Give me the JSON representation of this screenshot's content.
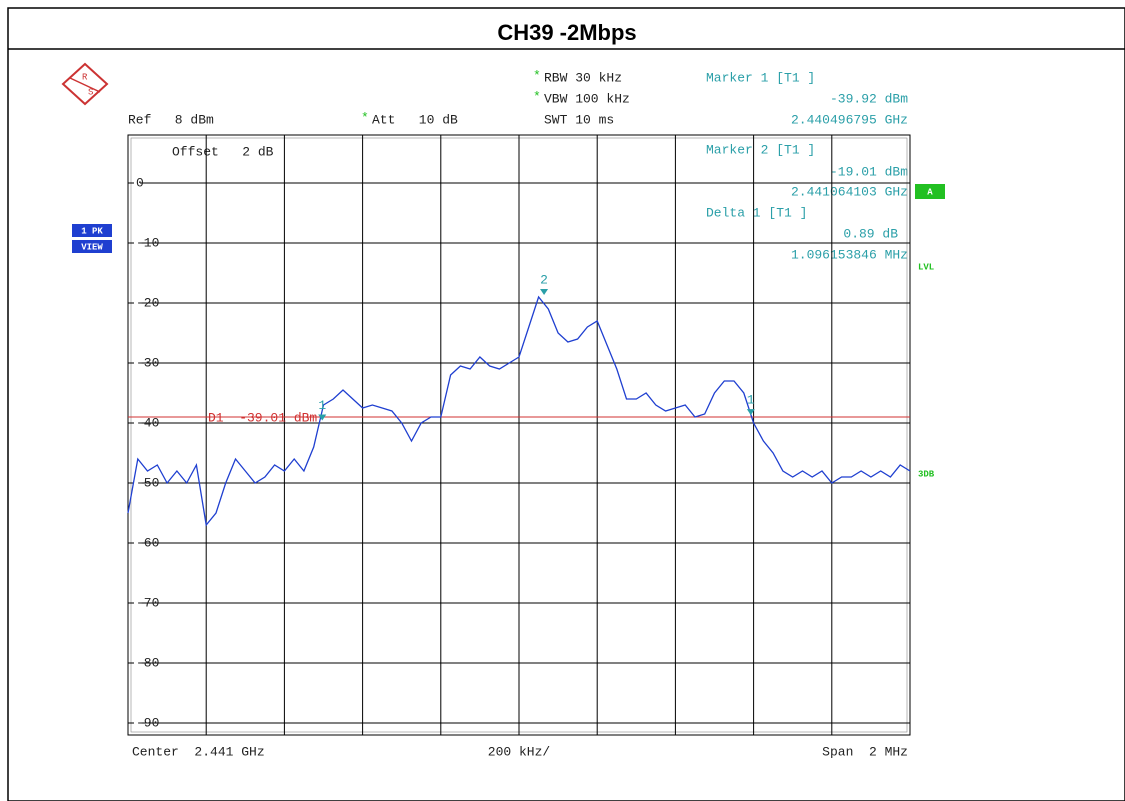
{
  "chart_data": {
    "type": "line",
    "title": "CH39 -2Mbps",
    "logo": [
      "R",
      "S"
    ],
    "settings": [
      {
        "mark": "*",
        "text": "RBW 30 kHz"
      },
      {
        "mark": "*",
        "text": "VBW 100 kHz"
      },
      {
        "text": "SWT 10 ms"
      },
      {
        "text": "Ref   8 dBm"
      },
      {
        "mark": "*",
        "text": "Att   10 dB"
      }
    ],
    "offset": "Offset   2 dB",
    "side_labels": {
      "trace": "1 PK",
      "mode": "VIEW",
      "trace_flag": "A",
      "lvl": "LVL",
      "db": "3DB"
    },
    "footer": {
      "center": "Center  2.441 GHz",
      "div": "200 kHz/",
      "span": "Span  2 MHz"
    },
    "xlim": [
      2.44,
      2.442
    ],
    "xticks": [
      2.4402,
      2.4404,
      2.4406,
      2.4408,
      2.441,
      2.4412,
      2.4414,
      2.4416,
      2.4418
    ],
    "ylim": [
      -92,
      8
    ],
    "yticks": [
      0,
      -10,
      -20,
      -30,
      -40,
      -50,
      -60,
      -70,
      -80,
      -90
    ],
    "grid": true,
    "display_line": {
      "label": "D1  -39.01 dBm",
      "value": -39.01,
      "color": "#d03030"
    },
    "markers": [
      {
        "title": "Marker 1 [T1 ]",
        "tag": "1",
        "level": {
          "value": -39.92,
          "label": "-39.92 dBm"
        },
        "freq": {
          "value": 2.440496795,
          "label": "2.440496795 GHz"
        }
      },
      {
        "title": "Marker 2 [T1 ]",
        "tag": "2",
        "level": {
          "value": -19.01,
          "label": "-19.01 dBm"
        },
        "freq": {
          "value": 2.441064103,
          "label": "2.441064103 GHz"
        }
      }
    ],
    "delta": {
      "title": "Delta 1 [T1 ]",
      "tag": "1",
      "level": {
        "value": 0.89,
        "label": "0.89 dB"
      },
      "freq": {
        "value": 1.096153846,
        "label": "1.096153846 MHz"
      }
    },
    "series": [
      {
        "name": "1 PK",
        "color": "#1f3fd0",
        "x": [
          2.44,
          2.440025,
          2.44005,
          2.440075,
          2.4401,
          2.440125,
          2.44015,
          2.440175,
          2.4402,
          2.440225,
          2.44025,
          2.440275,
          2.4403,
          2.440325,
          2.44035,
          2.440375,
          2.4404,
          2.440425,
          2.44045,
          2.440475,
          2.4405,
          2.440525,
          2.44055,
          2.440575,
          2.4406,
          2.440625,
          2.44065,
          2.440675,
          2.4407,
          2.440725,
          2.44075,
          2.440775,
          2.4408,
          2.440825,
          2.44085,
          2.440875,
          2.4409,
          2.440925,
          2.44095,
          2.440975,
          2.441,
          2.441025,
          2.44105,
          2.441075,
          2.4411,
          2.441125,
          2.44115,
          2.441175,
          2.4412,
          2.441225,
          2.44125,
          2.441275,
          2.4413,
          2.441325,
          2.44135,
          2.441375,
          2.4414,
          2.441425,
          2.44145,
          2.441475,
          2.4415,
          2.441525,
          2.44155,
          2.441575,
          2.4416,
          2.441625,
          2.44165,
          2.441675,
          2.4417,
          2.441725,
          2.44175,
          2.441775,
          2.4418,
          2.441825,
          2.44185,
          2.441875,
          2.4419,
          2.441925,
          2.44195,
          2.441975,
          2.442
        ],
        "values": [
          -55,
          -46,
          -48,
          -47,
          -50,
          -48,
          -50,
          -47,
          -57,
          -55,
          -50,
          -46,
          -48,
          -50,
          -49,
          -47,
          -48,
          -46,
          -48,
          -44,
          -37,
          -36,
          -34.5,
          -36,
          -37.5,
          -37,
          -37.5,
          -38,
          -40,
          -43,
          -40,
          -39,
          -39,
          -32,
          -30.5,
          -31,
          -29,
          -30.5,
          -31,
          -30,
          -29,
          -24,
          -19,
          -21,
          -25,
          -26.5,
          -26,
          -24,
          -23,
          -27,
          -31,
          -36,
          -36,
          -35,
          -37,
          -38,
          -37.5,
          -37,
          -39,
          -38.5,
          -35,
          -33,
          -33,
          -35,
          -40,
          -43,
          -45,
          -48,
          -49,
          -48,
          -49,
          -48,
          -50,
          -49,
          -49,
          -48,
          -49,
          -48,
          -49,
          -47,
          -48
        ]
      }
    ]
  }
}
